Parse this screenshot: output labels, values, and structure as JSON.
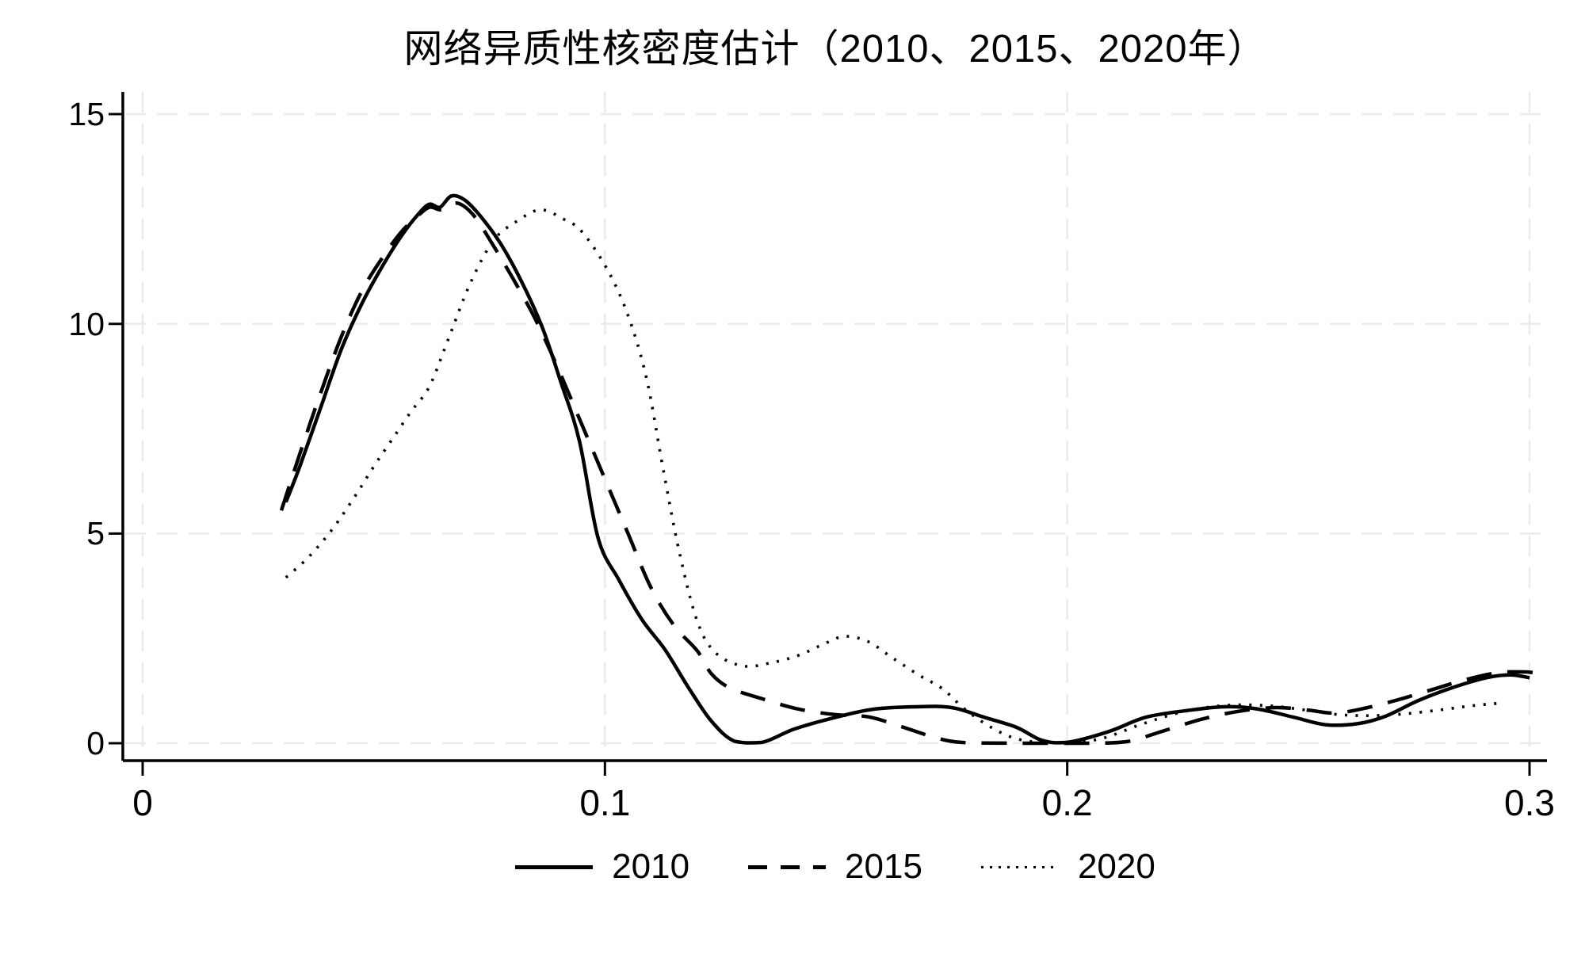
{
  "title": "网络异质性核密度估计（2010、2015、2020年）",
  "axes": {
    "y_ticks": [
      {
        "label": "0",
        "value": 0
      },
      {
        "label": "5",
        "value": 5
      },
      {
        "label": "10",
        "value": 10
      },
      {
        "label": "15",
        "value": 15
      }
    ],
    "x_ticks": [
      {
        "label": "0",
        "value": 0
      },
      {
        "label": "0.1",
        "value": 0.1
      },
      {
        "label": "0.2",
        "value": 0.2
      },
      {
        "label": "0.3",
        "value": 0.3
      }
    ]
  },
  "legend": {
    "items": [
      {
        "label": "2010",
        "style": "solid"
      },
      {
        "label": "2015",
        "style": "dashed"
      },
      {
        "label": "2020",
        "style": "dotted"
      }
    ]
  },
  "colors": {
    "line": "#000000",
    "grid": "#eaeaea",
    "axis": "#000000",
    "background": "#ffffff"
  },
  "chart_data": {
    "type": "line",
    "title": "网络异质性核密度估计（2010、2015、2020年）",
    "xlabel": "",
    "ylabel": "",
    "xlim": [
      0,
      0.307
    ],
    "ylim": [
      0,
      15
    ],
    "x_tick_values": [
      0,
      0.1,
      0.2,
      0.3
    ],
    "y_tick_values": [
      0,
      5,
      10,
      15
    ],
    "grid": true,
    "legend_position": "bottom-center",
    "series": [
      {
        "name": "2010",
        "style": "solid",
        "points": [
          [
            0.031,
            5.75
          ],
          [
            0.034,
            6.6
          ],
          [
            0.0385,
            8.0
          ],
          [
            0.043,
            9.4
          ],
          [
            0.0475,
            10.5
          ],
          [
            0.052,
            11.4
          ],
          [
            0.056,
            12.1
          ],
          [
            0.0595,
            12.6
          ],
          [
            0.062,
            12.85
          ],
          [
            0.0643,
            12.78
          ],
          [
            0.0668,
            13.05
          ],
          [
            0.0697,
            12.95
          ],
          [
            0.0732,
            12.55
          ],
          [
            0.0775,
            11.9
          ],
          [
            0.082,
            11.0
          ],
          [
            0.0865,
            9.9
          ],
          [
            0.0905,
            8.6
          ],
          [
            0.0945,
            7.2
          ],
          [
            0.0985,
            4.9
          ],
          [
            0.103,
            3.9
          ],
          [
            0.108,
            2.95
          ],
          [
            0.113,
            2.23
          ],
          [
            0.118,
            1.34
          ],
          [
            0.123,
            0.53
          ],
          [
            0.128,
            0.05
          ],
          [
            0.134,
            0.02
          ],
          [
            0.141,
            0.34
          ],
          [
            0.15,
            0.62
          ],
          [
            0.158,
            0.81
          ],
          [
            0.167,
            0.87
          ],
          [
            0.175,
            0.85
          ],
          [
            0.182,
            0.62
          ],
          [
            0.189,
            0.38
          ],
          [
            0.1945,
            0.07
          ],
          [
            0.2,
            0.02
          ],
          [
            0.209,
            0.28
          ],
          [
            0.217,
            0.62
          ],
          [
            0.226,
            0.78
          ],
          [
            0.234,
            0.87
          ],
          [
            0.241,
            0.82
          ],
          [
            0.249,
            0.62
          ],
          [
            0.256,
            0.44
          ],
          [
            0.263,
            0.47
          ],
          [
            0.269,
            0.65
          ],
          [
            0.276,
            1.02
          ],
          [
            0.284,
            1.35
          ],
          [
            0.291,
            1.57
          ],
          [
            0.296,
            1.63
          ],
          [
            0.3,
            1.56
          ]
        ]
      },
      {
        "name": "2015",
        "style": "dashed",
        "points": [
          [
            0.03,
            5.55
          ],
          [
            0.034,
            6.9
          ],
          [
            0.0385,
            8.35
          ],
          [
            0.043,
            9.7
          ],
          [
            0.0475,
            10.8
          ],
          [
            0.052,
            11.6
          ],
          [
            0.056,
            12.2
          ],
          [
            0.0593,
            12.55
          ],
          [
            0.062,
            12.78
          ],
          [
            0.0647,
            12.72
          ],
          [
            0.068,
            12.88
          ],
          [
            0.0715,
            12.6
          ],
          [
            0.0754,
            11.95
          ],
          [
            0.08,
            11.1
          ],
          [
            0.085,
            10.1
          ],
          [
            0.09,
            8.9
          ],
          [
            0.095,
            7.6
          ],
          [
            0.1,
            6.3
          ],
          [
            0.105,
            5.0
          ],
          [
            0.11,
            3.7
          ],
          [
            0.115,
            2.8
          ],
          [
            0.12,
            2.2
          ],
          [
            0.123,
            1.66
          ],
          [
            0.127,
            1.32
          ],
          [
            0.134,
            1.06
          ],
          [
            0.142,
            0.81
          ],
          [
            0.15,
            0.68
          ],
          [
            0.157,
            0.63
          ],
          [
            0.164,
            0.4
          ],
          [
            0.171,
            0.15
          ],
          [
            0.177,
            0.02
          ],
          [
            0.19,
            0.0
          ],
          [
            0.205,
            0.0
          ],
          [
            0.213,
            0.04
          ],
          [
            0.221,
            0.3
          ],
          [
            0.229,
            0.57
          ],
          [
            0.237,
            0.76
          ],
          [
            0.245,
            0.85
          ],
          [
            0.252,
            0.79
          ],
          [
            0.258,
            0.72
          ],
          [
            0.265,
            0.85
          ],
          [
            0.272,
            1.05
          ],
          [
            0.279,
            1.28
          ],
          [
            0.286,
            1.51
          ],
          [
            0.293,
            1.68
          ],
          [
            0.299,
            1.7
          ],
          [
            0.303,
            1.65
          ]
        ]
      },
      {
        "name": "2020",
        "style": "dotted",
        "points": [
          [
            0.031,
            3.95
          ],
          [
            0.036,
            4.45
          ],
          [
            0.041,
            5.1
          ],
          [
            0.046,
            5.9
          ],
          [
            0.05,
            6.6
          ],
          [
            0.054,
            7.25
          ],
          [
            0.058,
            7.9
          ],
          [
            0.062,
            8.5
          ],
          [
            0.066,
            9.6
          ],
          [
            0.071,
            11.0
          ],
          [
            0.076,
            12.0
          ],
          [
            0.081,
            12.45
          ],
          [
            0.086,
            12.72
          ],
          [
            0.091,
            12.5
          ],
          [
            0.095,
            12.2
          ],
          [
            0.1005,
            11.3
          ],
          [
            0.105,
            10.2
          ],
          [
            0.109,
            8.7
          ],
          [
            0.1125,
            6.6
          ],
          [
            0.116,
            4.6
          ],
          [
            0.12,
            2.9
          ],
          [
            0.124,
            2.15
          ],
          [
            0.13,
            1.84
          ],
          [
            0.136,
            1.92
          ],
          [
            0.142,
            2.1
          ],
          [
            0.148,
            2.4
          ],
          [
            0.152,
            2.55
          ],
          [
            0.157,
            2.42
          ],
          [
            0.162,
            2.05
          ],
          [
            0.168,
            1.62
          ],
          [
            0.173,
            1.3
          ],
          [
            0.178,
            0.8
          ],
          [
            0.184,
            0.35
          ],
          [
            0.19,
            0.08
          ],
          [
            0.198,
            0.02
          ],
          [
            0.207,
            0.1
          ],
          [
            0.216,
            0.45
          ],
          [
            0.225,
            0.75
          ],
          [
            0.234,
            0.9
          ],
          [
            0.243,
            0.9
          ],
          [
            0.251,
            0.8
          ],
          [
            0.259,
            0.68
          ],
          [
            0.266,
            0.66
          ],
          [
            0.273,
            0.7
          ],
          [
            0.281,
            0.8
          ],
          [
            0.288,
            0.9
          ],
          [
            0.293,
            0.95
          ]
        ]
      }
    ]
  }
}
